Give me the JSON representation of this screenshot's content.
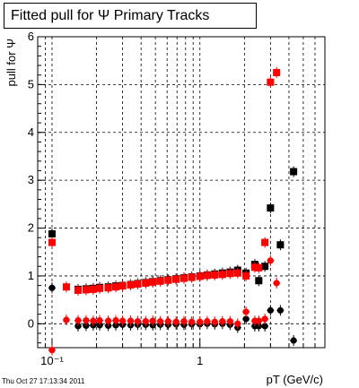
{
  "chart_data": {
    "type": "scatter",
    "title": "Fitted pull for  Ψ   Primary Tracks",
    "xlabel": "pT (GeV/c)",
    "ylabel": "pull for  Ψ",
    "xscale": "log",
    "xlim": [
      0.08,
      7.0
    ],
    "ylim": [
      -0.5,
      6.0
    ],
    "grid": true,
    "x_ticklabels": [
      "10⁻¹",
      "1"
    ],
    "y_ticklabels": [
      "0",
      "1",
      "2",
      "3",
      "4",
      "5",
      "6"
    ],
    "series": [
      {
        "color": "#000000",
        "marker": "square",
        "points": [
          [
            0.1,
            1.88
          ],
          [
            0.15,
            0.72
          ],
          [
            0.17,
            0.73
          ],
          [
            0.19,
            0.74
          ],
          [
            0.21,
            0.76
          ],
          [
            0.24,
            0.77
          ],
          [
            0.27,
            0.79
          ],
          [
            0.3,
            0.8
          ],
          [
            0.34,
            0.82
          ],
          [
            0.38,
            0.84
          ],
          [
            0.43,
            0.86
          ],
          [
            0.48,
            0.88
          ],
          [
            0.54,
            0.9
          ],
          [
            0.61,
            0.92
          ],
          [
            0.69,
            0.94
          ],
          [
            0.78,
            0.96
          ],
          [
            0.88,
            0.98
          ],
          [
            1.0,
            1.0
          ],
          [
            1.12,
            1.02
          ],
          [
            1.26,
            1.04
          ],
          [
            1.42,
            1.06
          ],
          [
            1.6,
            1.08
          ],
          [
            1.8,
            1.12
          ],
          [
            2.05,
            1.06
          ],
          [
            2.35,
            1.24
          ],
          [
            2.5,
            0.9
          ],
          [
            2.75,
            1.2
          ],
          [
            3.0,
            2.42
          ],
          [
            3.5,
            1.65
          ],
          [
            4.3,
            3.18
          ]
        ]
      },
      {
        "color": "#000000",
        "marker": "circle",
        "points": [
          [
            0.1,
            0.75
          ],
          [
            0.15,
            -0.05
          ],
          [
            0.17,
            -0.04
          ],
          [
            0.19,
            -0.03
          ],
          [
            0.21,
            -0.03
          ],
          [
            0.24,
            -0.04
          ],
          [
            0.27,
            -0.03
          ],
          [
            0.3,
            -0.02
          ],
          [
            0.34,
            -0.03
          ],
          [
            0.38,
            -0.02
          ],
          [
            0.43,
            -0.02
          ],
          [
            0.48,
            -0.03
          ],
          [
            0.54,
            -0.02
          ],
          [
            0.61,
            -0.02
          ],
          [
            0.69,
            -0.01
          ],
          [
            0.78,
            -0.02
          ],
          [
            0.88,
            -0.01
          ],
          [
            1.0,
            -0.01
          ],
          [
            1.12,
            0.0
          ],
          [
            1.26,
            -0.01
          ],
          [
            1.42,
            0.0
          ],
          [
            1.6,
            -0.02
          ],
          [
            1.8,
            -0.08
          ],
          [
            2.05,
            0.1
          ],
          [
            2.35,
            -0.05
          ],
          [
            2.5,
            -0.05
          ],
          [
            2.75,
            -0.05
          ],
          [
            3.0,
            0.28
          ],
          [
            3.5,
            0.28
          ],
          [
            4.3,
            -0.35
          ]
        ]
      },
      {
        "color": "#ff0000",
        "marker": "square",
        "points": [
          [
            0.1,
            1.7
          ],
          [
            0.125,
            0.77
          ],
          [
            0.15,
            0.7
          ],
          [
            0.17,
            0.71
          ],
          [
            0.19,
            0.72
          ],
          [
            0.21,
            0.74
          ],
          [
            0.24,
            0.75
          ],
          [
            0.27,
            0.77
          ],
          [
            0.3,
            0.79
          ],
          [
            0.34,
            0.81
          ],
          [
            0.38,
            0.83
          ],
          [
            0.43,
            0.85
          ],
          [
            0.48,
            0.87
          ],
          [
            0.54,
            0.89
          ],
          [
            0.61,
            0.91
          ],
          [
            0.69,
            0.93
          ],
          [
            0.78,
            0.95
          ],
          [
            0.88,
            0.97
          ],
          [
            1.0,
            0.99
          ],
          [
            1.12,
            1.01
          ],
          [
            1.26,
            1.02
          ],
          [
            1.42,
            1.03
          ],
          [
            1.6,
            1.05
          ],
          [
            1.8,
            1.06
          ],
          [
            2.05,
            1.0
          ],
          [
            2.35,
            1.18
          ],
          [
            2.5,
            1.17
          ],
          [
            2.75,
            1.7
          ],
          [
            3.0,
            5.05
          ],
          [
            3.3,
            5.25
          ]
        ]
      },
      {
        "color": "#ff0000",
        "marker": "circle",
        "points": [
          [
            0.1,
            -0.55
          ],
          [
            0.125,
            0.08
          ],
          [
            0.15,
            0.07
          ],
          [
            0.17,
            0.07
          ],
          [
            0.19,
            0.06
          ],
          [
            0.21,
            0.07
          ],
          [
            0.24,
            0.06
          ],
          [
            0.27,
            0.07
          ],
          [
            0.3,
            0.06
          ],
          [
            0.34,
            0.06
          ],
          [
            0.38,
            0.05
          ],
          [
            0.43,
            0.05
          ],
          [
            0.48,
            0.06
          ],
          [
            0.54,
            0.05
          ],
          [
            0.61,
            0.05
          ],
          [
            0.69,
            0.04
          ],
          [
            0.78,
            0.05
          ],
          [
            0.88,
            0.04
          ],
          [
            1.0,
            0.04
          ],
          [
            1.12,
            0.05
          ],
          [
            1.26,
            0.04
          ],
          [
            1.42,
            0.05
          ],
          [
            1.6,
            0.05
          ],
          [
            1.8,
            0.0
          ],
          [
            2.05,
            0.25
          ],
          [
            2.35,
            0.06
          ],
          [
            2.5,
            0.06
          ],
          [
            2.75,
            0.1
          ],
          [
            3.0,
            1.32
          ],
          [
            3.3,
            0.85
          ]
        ]
      }
    ]
  },
  "footer": {
    "timestamp": "Thu Oct 27 17:13:34 2011"
  }
}
